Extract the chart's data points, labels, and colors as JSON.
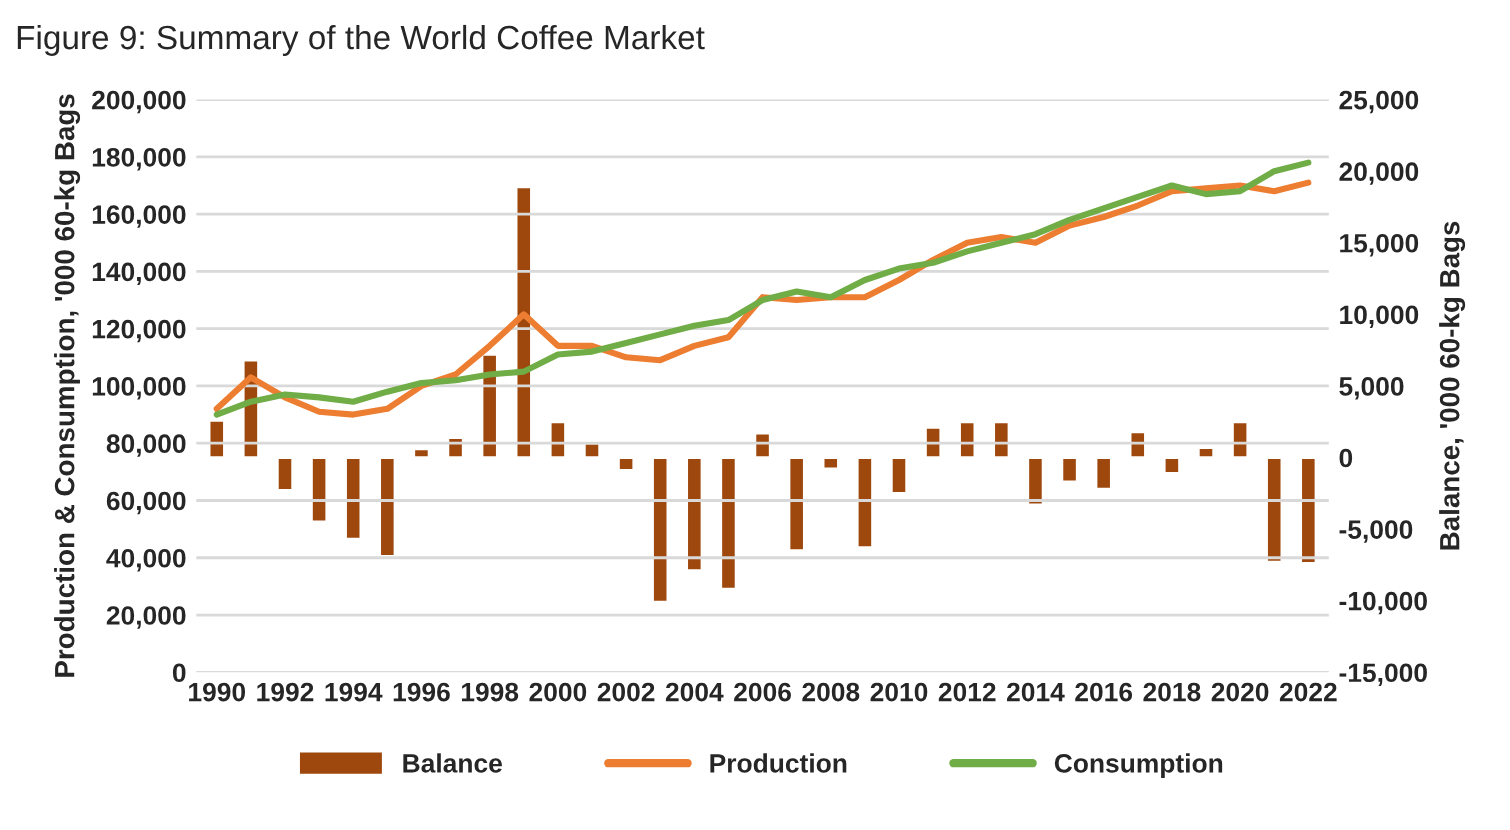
{
  "chart_data": {
    "type": "line",
    "title": "Figure 9: Summary of the World Coffee Market",
    "ylabel": "Production & Consumption, '000 60-kg Bags",
    "y2label": "Balance, '000 60-kg Bags",
    "x": [
      1990,
      1991,
      1992,
      1993,
      1994,
      1995,
      1996,
      1997,
      1998,
      1999,
      2000,
      2001,
      2002,
      2003,
      2004,
      2005,
      2006,
      2007,
      2008,
      2009,
      2010,
      2011,
      2012,
      2013,
      2014,
      2015,
      2016,
      2017,
      2018,
      2019,
      2020,
      2021,
      2022
    ],
    "series": [
      {
        "name": "Balance",
        "type": "bar",
        "axis": "y2",
        "color": "#9e480e",
        "values": [
          2600,
          6800,
          -2300,
          -4500,
          -5700,
          -6900,
          600,
          1400,
          7200,
          18900,
          2500,
          1000,
          -900,
          -10100,
          -7900,
          -9200,
          1700,
          -6500,
          -800,
          -6300,
          -2500,
          2100,
          2500,
          2500,
          -3300,
          -1700,
          -2200,
          1800,
          -1100,
          700,
          2500,
          -7300,
          -7400
        ]
      },
      {
        "name": "Production",
        "color": "#ed7d31",
        "values": [
          92000,
          103000,
          96000,
          91000,
          90000,
          92000,
          100000,
          104000,
          114000,
          125000,
          114000,
          114000,
          110000,
          109000,
          114000,
          117000,
          131000,
          130000,
          131000,
          131000,
          137000,
          144000,
          150000,
          152000,
          150000,
          156000,
          159000,
          163000,
          168000,
          169000,
          170000,
          168000,
          171000
        ]
      },
      {
        "name": "Consumption",
        "color": "#70ad47",
        "values": [
          90000,
          94500,
          97000,
          96000,
          94500,
          98000,
          101000,
          102000,
          104000,
          105000,
          111000,
          112000,
          115000,
          118000,
          121000,
          123000,
          130000,
          133000,
          131000,
          137000,
          141000,
          143000,
          147000,
          150000,
          153000,
          158000,
          162000,
          166000,
          170000,
          167000,
          168000,
          175000,
          178000
        ]
      }
    ],
    "xlim": [
      1989.4,
      2022.6
    ],
    "xticks": [
      1990,
      1992,
      1994,
      1996,
      1998,
      2000,
      2002,
      2004,
      2006,
      2008,
      2010,
      2012,
      2014,
      2016,
      2018,
      2020,
      2022
    ],
    "ylim": [
      0,
      200000
    ],
    "yticks": [
      {
        "value": 0,
        "label": "0"
      },
      {
        "value": 20000,
        "label": "20,000"
      },
      {
        "value": 40000,
        "label": "40,000"
      },
      {
        "value": 60000,
        "label": "60,000"
      },
      {
        "value": 80000,
        "label": "80,000"
      },
      {
        "value": 100000,
        "label": "100,000"
      },
      {
        "value": 120000,
        "label": "120,000"
      },
      {
        "value": 140000,
        "label": "140,000"
      },
      {
        "value": 160000,
        "label": "160,000"
      },
      {
        "value": 180000,
        "label": "180,000"
      },
      {
        "value": 200000,
        "label": "200,000"
      }
    ],
    "y2lim": [
      -15000,
      25000
    ],
    "y2ticks": [
      {
        "value": -15000,
        "label": "-15,000"
      },
      {
        "value": -10000,
        "label": "-10,000"
      },
      {
        "value": -5000,
        "label": "-5,000"
      },
      {
        "value": 0,
        "label": "0"
      },
      {
        "value": 5000,
        "label": "5,000"
      },
      {
        "value": 10000,
        "label": "10,000"
      },
      {
        "value": 15000,
        "label": "15,000"
      },
      {
        "value": 20000,
        "label": "20,000"
      },
      {
        "value": 25000,
        "label": "25,000"
      }
    ],
    "grid": "y",
    "legend": "bottom"
  }
}
